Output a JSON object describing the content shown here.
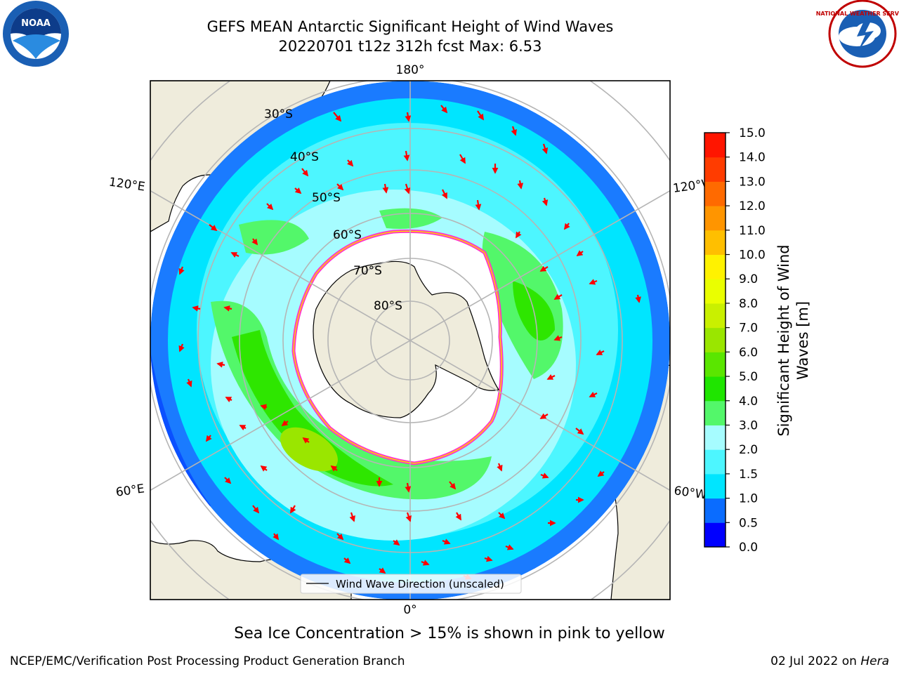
{
  "header": {
    "title_line1": "GEFS MEAN Antarctic Significant Height of Wind Waves",
    "title_line2": "20220701 t12z 312h fcst   Max: 6.53"
  },
  "map": {
    "meridian_labels": {
      "top": "180°",
      "bottom": "0°",
      "left_upper": "120°E",
      "left_lower": "60°E",
      "right_upper": "120°W",
      "right_lower": "60°W"
    },
    "latitude_labels": [
      "30°S",
      "40°S",
      "50°S",
      "60°S",
      "70°S",
      "80°S"
    ],
    "legend_label": "Wind Wave Direction (unscaled)"
  },
  "colorbar": {
    "title_line1": "Significant Height of Wind",
    "title_line2": "Waves [m]",
    "ticks": [
      "0.0",
      "0.5",
      "1.0",
      "1.5",
      "2.0",
      "3.0",
      "4.0",
      "5.0",
      "6.0",
      "7.0",
      "8.0",
      "9.0",
      "10.0",
      "11.0",
      "12.0",
      "13.0",
      "14.0",
      "15.0"
    ],
    "colors": [
      "#0000ff",
      "#0a6cff",
      "#00e5ff",
      "#4df6ff",
      "#a6fcff",
      "#53f76a",
      "#1fe500",
      "#5ae600",
      "#9ae600",
      "#c9f000",
      "#eaff00",
      "#fff200",
      "#ffbf00",
      "#ff9500",
      "#ff6a00",
      "#ff3c00",
      "#ff1500"
    ]
  },
  "logos": {
    "noaa_text": "NOAA",
    "nws_text": "NATIONAL WEATHER SERVICE"
  },
  "footer": {
    "note": "Sea Ice Concentration > 15% is shown in pink to yellow",
    "credit": "NCEP/EMC/Verification Post Processing Product Generation Branch",
    "date": "02 Jul 2022 on",
    "machine": "Hera"
  }
}
